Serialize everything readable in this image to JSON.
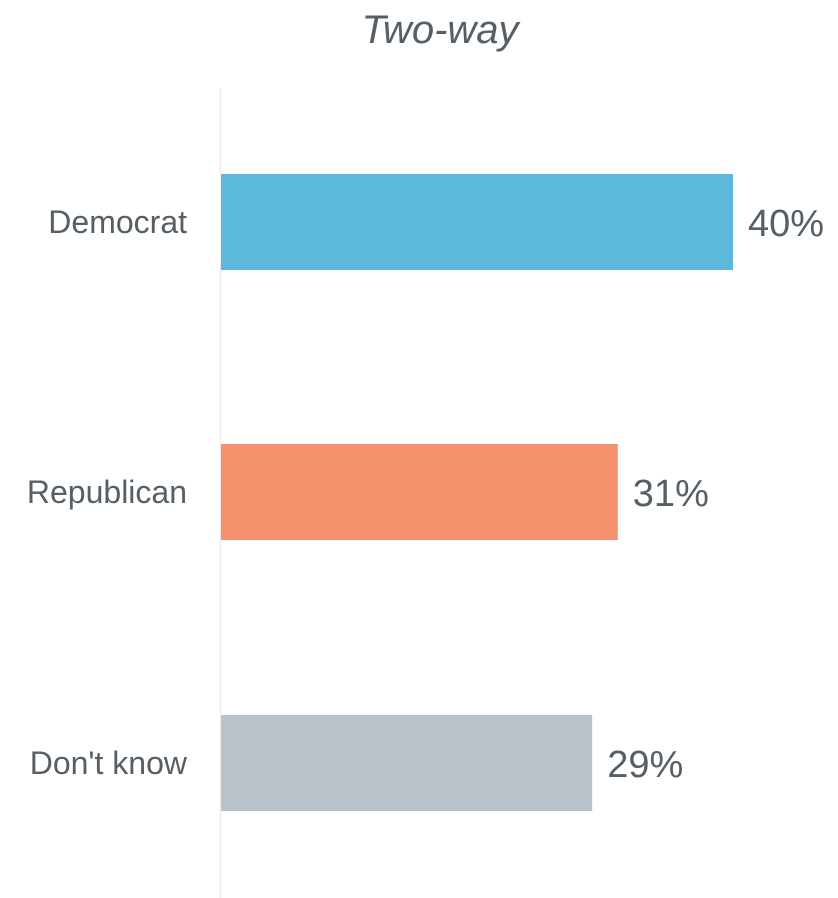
{
  "chart_data": {
    "type": "bar",
    "orientation": "horizontal",
    "title": "Two-way",
    "categories": [
      "Democrat",
      "Republican",
      "Don't know"
    ],
    "values": [
      40,
      31,
      29
    ],
    "value_labels": [
      "40%",
      "31%",
      "29%"
    ],
    "colors": [
      "#5bbadc",
      "#f5906d",
      "#b9c3c9"
    ],
    "xlim": [
      0,
      40
    ],
    "grid": false,
    "legend": "none",
    "xlabel": "",
    "ylabel": ""
  }
}
